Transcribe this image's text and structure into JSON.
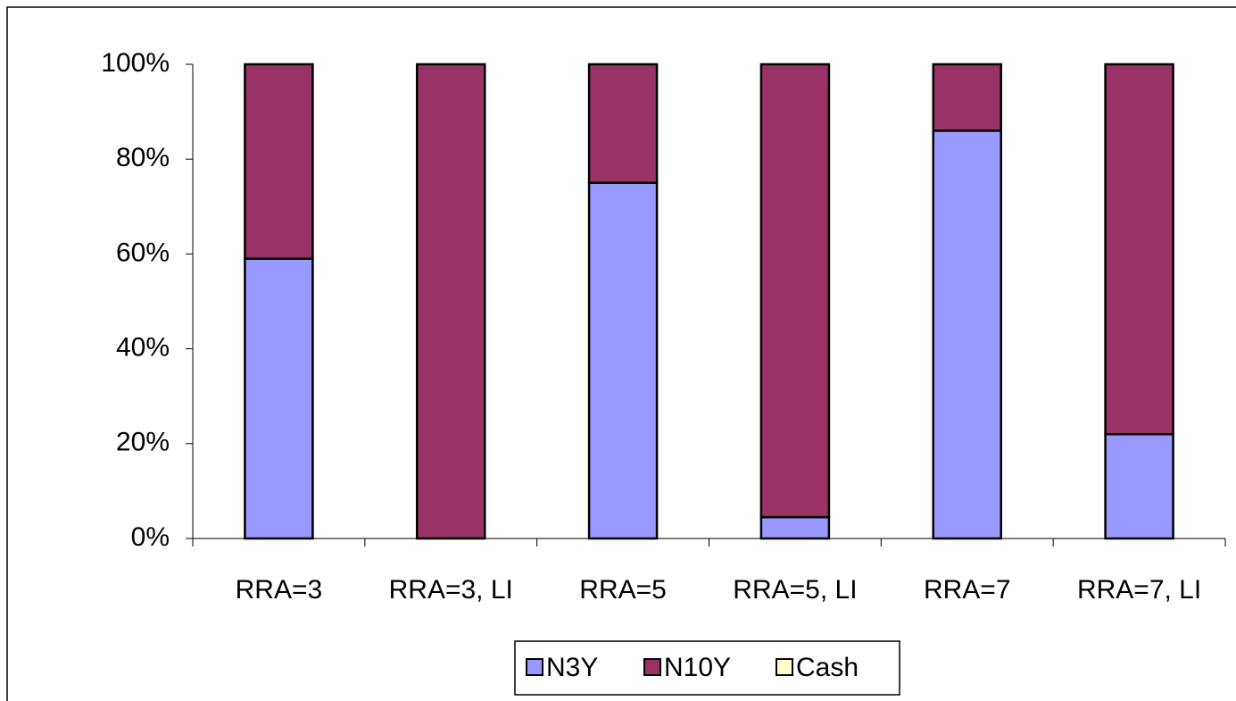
{
  "chart_data": {
    "type": "stacked_bar",
    "categories": [
      "RRA=3",
      "RRA=3, LI",
      "RRA=5",
      "RRA=5, LI",
      "RRA=7",
      "RRA=7, LI"
    ],
    "series": [
      {
        "name": "N3Y",
        "color": "#9999ff",
        "values": [
          59,
          0,
          75,
          4.5,
          86,
          22
        ]
      },
      {
        "name": "N10Y",
        "color": "#993366",
        "values": [
          41,
          100,
          25,
          95.5,
          14,
          78
        ]
      },
      {
        "name": "Cash",
        "color": "#ffffcc",
        "values": [
          0,
          0,
          0,
          0,
          0,
          0
        ]
      }
    ],
    "ylim": [
      0,
      100
    ],
    "yticks": [
      {
        "value": 0,
        "label": "0%"
      },
      {
        "value": 20,
        "label": "20%"
      },
      {
        "value": 40,
        "label": "40%"
      },
      {
        "value": 60,
        "label": "60%"
      },
      {
        "value": 80,
        "label": "80%"
      },
      {
        "value": 100,
        "label": "100%"
      }
    ],
    "legend": "bottom"
  }
}
